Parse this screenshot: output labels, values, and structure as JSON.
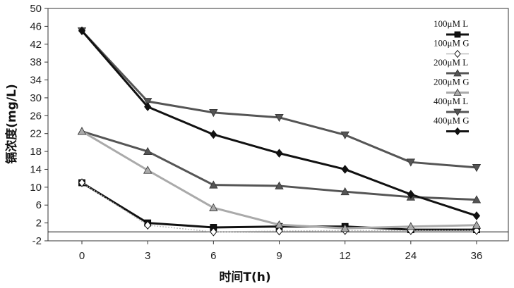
{
  "chart_data": {
    "type": "line",
    "title": "",
    "xlabel": "时间T(h)",
    "ylabel": "镉浓度(mg/L)",
    "categories": [
      "0",
      "3",
      "6",
      "9",
      "12",
      "24",
      "36"
    ],
    "ylim": [
      -2,
      50
    ],
    "yticks": [
      "-2",
      "2",
      "6",
      "10",
      "14",
      "18",
      "22",
      "26",
      "30",
      "34",
      "38",
      "42",
      "46",
      "50"
    ],
    "ytick_values": [
      -2,
      2,
      6,
      10,
      14,
      18,
      22,
      26,
      30,
      34,
      38,
      42,
      46,
      50
    ],
    "zero_line": true,
    "grid": false,
    "legend_position": "top-right",
    "series": [
      {
        "name": "100μM L",
        "color": "#111111",
        "marker": "square",
        "values": [
          11,
          2,
          1,
          1.2,
          1.2,
          0.5,
          0.5
        ]
      },
      {
        "name": "100μM G",
        "color": "#bbbbbb",
        "marker": "diamond",
        "values": [
          11,
          1.5,
          0,
          0.2,
          0.3,
          0.3,
          0.3
        ]
      },
      {
        "name": "200μM L",
        "color": "#555555",
        "marker": "triangle-up",
        "values": [
          22.5,
          18,
          10.5,
          10.3,
          9,
          7.8,
          7.2
        ]
      },
      {
        "name": "200μM G",
        "color": "#aaaaaa",
        "marker": "triangle-up",
        "values": [
          22.5,
          13.8,
          5.4,
          1.6,
          0.8,
          1.2,
          1.5
        ]
      },
      {
        "name": "400μM L",
        "color": "#555555",
        "marker": "triangle-down",
        "values": [
          45,
          29.2,
          26.7,
          25.6,
          21.7,
          15.6,
          14.4
        ]
      },
      {
        "name": "400μM G",
        "color": "#111111",
        "marker": "diamond",
        "values": [
          45,
          28,
          21.8,
          17.6,
          14,
          8.4,
          3.6
        ]
      }
    ]
  }
}
